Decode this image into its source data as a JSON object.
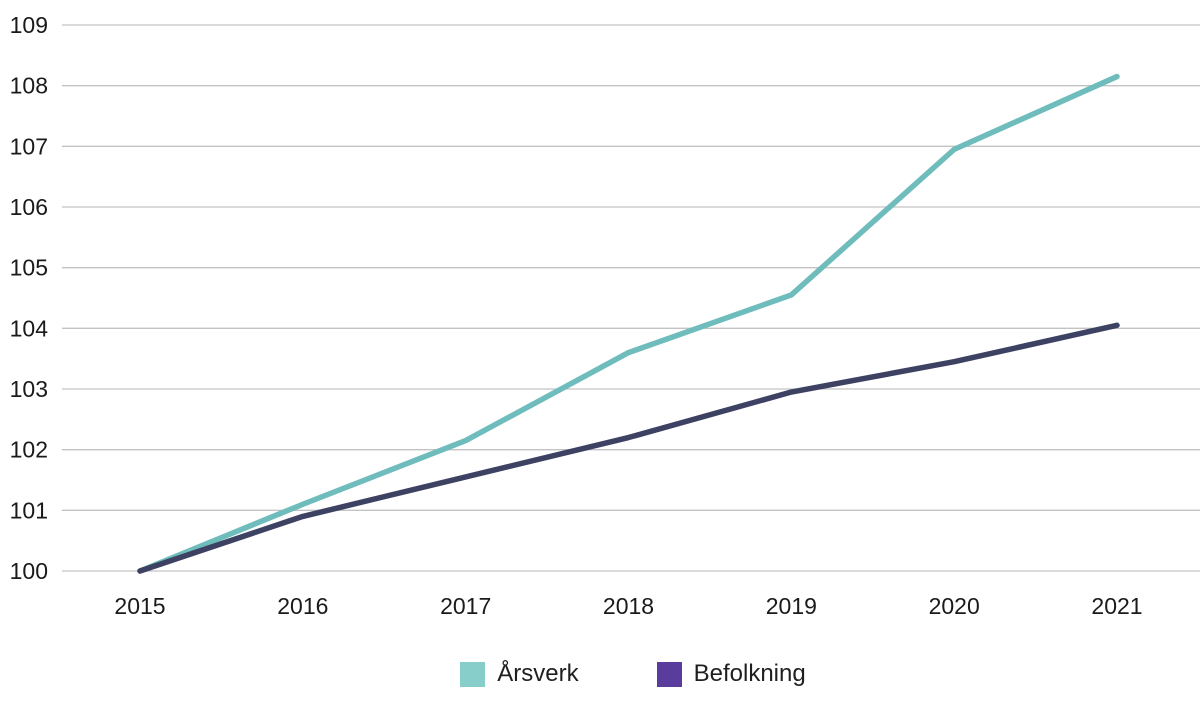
{
  "chart_data": {
    "type": "line",
    "x": [
      2015,
      2016,
      2017,
      2018,
      2019,
      2020,
      2021
    ],
    "series": [
      {
        "key": "arsverk",
        "name": "Årsverk",
        "values": [
          100,
          101.1,
          102.15,
          103.6,
          104.55,
          106.95,
          108.15
        ],
        "color": "#6fbcbd",
        "legend_color": "#87ceca"
      },
      {
        "key": "befolkning",
        "name": "Befolkning",
        "values": [
          100,
          100.9,
          101.55,
          102.2,
          102.95,
          103.45,
          104.05
        ],
        "color": "#3d4263",
        "legend_color": "#5a3c9c"
      }
    ],
    "ylim": [
      100,
      109
    ],
    "yticks": [
      100,
      101,
      102,
      103,
      104,
      105,
      106,
      107,
      108,
      109
    ],
    "xlabel": "",
    "ylabel": "",
    "grid": "horizontal",
    "legend_position": "bottom-center",
    "axis_text_color": "#1a1a1a",
    "gridline_color": "#c3c3c3",
    "line_width": 5.5
  }
}
